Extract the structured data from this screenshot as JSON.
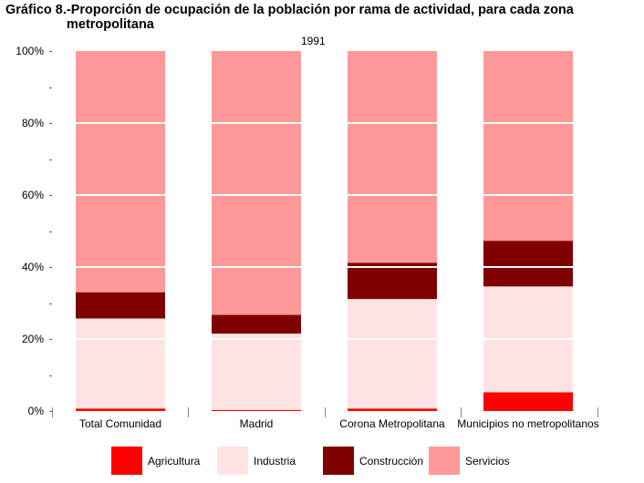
{
  "chart_data": {
    "type": "bar",
    "stacked": true,
    "title_line1": "Gráfico 8.-Proporción de ocupación de la población por rama de actividad, para cada zona",
    "title_line2": "metropolitana",
    "subtitle": "1991",
    "categories": [
      "Total Comunidad",
      "Madrid",
      "Corona Metropolitana",
      "Municipios no metropolitanos"
    ],
    "series": [
      {
        "name": "Agricultura",
        "color": "#ff0000",
        "values": [
          0.7,
          0.3,
          0.7,
          5.2
        ]
      },
      {
        "name": "Industria",
        "color": "#ffe3e3",
        "values": [
          25.0,
          21.2,
          30.4,
          29.4
        ]
      },
      {
        "name": "Construcción",
        "color": "#800000",
        "values": [
          7.3,
          5.2,
          10.1,
          12.7
        ]
      },
      {
        "name": "Servicios",
        "color": "#ff9999",
        "values": [
          67.0,
          73.3,
          58.8,
          52.7
        ]
      }
    ],
    "y_ticks": [
      "0%",
      "20%",
      "40%",
      "60%",
      "80%",
      "100%"
    ],
    "ylim": [
      0,
      100
    ],
    "grid": true,
    "legend_position": "bottom"
  }
}
